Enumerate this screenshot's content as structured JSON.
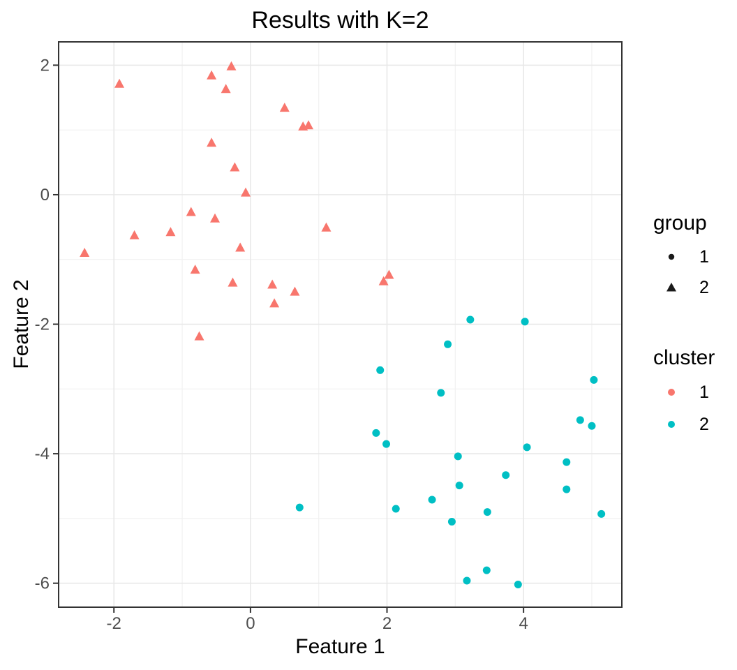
{
  "title": "Results with K=2",
  "x_axis": {
    "label": "Feature 1",
    "ticks": [
      -2,
      0,
      2,
      4
    ],
    "minor_ticks": [
      -1,
      1,
      3,
      5
    ],
    "range": [
      -2.81,
      5.44
    ]
  },
  "y_axis": {
    "label": "Feature 2",
    "ticks": [
      2,
      0,
      -2,
      -4,
      -6
    ],
    "minor_ticks": [
      1,
      -1,
      -3,
      -5
    ],
    "range": [
      -6.37,
      2.36
    ]
  },
  "legend": {
    "group": {
      "title": "group",
      "items": [
        {
          "label": "1",
          "shape": "circle",
          "color": "#1a1a1a"
        },
        {
          "label": "2",
          "shape": "triangle",
          "color": "#1a1a1a"
        }
      ]
    },
    "cluster": {
      "title": "cluster",
      "items": [
        {
          "label": "1",
          "shape": "circle",
          "color": "#F8766D"
        },
        {
          "label": "2",
          "shape": "circle",
          "color": "#00BFC4"
        }
      ]
    }
  },
  "colors": {
    "cluster1": "#F8766D",
    "cluster2": "#00BFC4",
    "grid_major": "#E8E8E8",
    "grid_minor": "#F1F1F1",
    "panel_border": "#333333",
    "tick_mark": "#333333",
    "tick_label": "#4D4D4D",
    "background": "#FFFFFF"
  },
  "chart_data": {
    "type": "scatter",
    "title": "Results with K=2",
    "xlabel": "Feature 1",
    "ylabel": "Feature 2",
    "xlim": [
      -2.81,
      5.44
    ],
    "ylim": [
      -6.37,
      2.36
    ],
    "x_ticks": [
      -2,
      0,
      2,
      4
    ],
    "y_ticks": [
      2,
      0,
      -2,
      -4,
      -6
    ],
    "x_minor": [
      -1,
      1,
      3,
      5
    ],
    "y_minor": [
      1,
      -1,
      -3,
      -5
    ],
    "grid": true,
    "legend_position": "right",
    "series": [
      {
        "name": "cluster 1 (group 2)",
        "cluster": "1",
        "group": "2",
        "marker": "triangle",
        "color": "#F8766D",
        "points": [
          [
            -2.43,
            -0.9
          ],
          [
            -1.92,
            1.71
          ],
          [
            -1.7,
            -0.63
          ],
          [
            -1.17,
            -0.58
          ],
          [
            -0.87,
            -0.27
          ],
          [
            -0.81,
            -1.16
          ],
          [
            -0.75,
            -2.19
          ],
          [
            -0.57,
            1.84
          ],
          [
            -0.57,
            0.8
          ],
          [
            -0.52,
            -0.37
          ],
          [
            -0.36,
            1.63
          ],
          [
            -0.28,
            1.98
          ],
          [
            -0.26,
            -1.36
          ],
          [
            -0.23,
            0.42
          ],
          [
            -0.15,
            -0.82
          ],
          [
            -0.07,
            0.03
          ],
          [
            0.32,
            -1.39
          ],
          [
            0.35,
            -1.68
          ],
          [
            0.5,
            1.34
          ],
          [
            0.65,
            -1.5
          ],
          [
            0.77,
            1.05
          ],
          [
            0.85,
            1.07
          ],
          [
            1.11,
            -0.51
          ],
          [
            1.95,
            -1.34
          ],
          [
            2.03,
            -1.24
          ]
        ]
      },
      {
        "name": "cluster 2 (group 1)",
        "cluster": "2",
        "group": "1",
        "marker": "circle",
        "color": "#00BFC4",
        "points": [
          [
            0.72,
            -4.83
          ],
          [
            1.84,
            -3.68
          ],
          [
            1.9,
            -2.71
          ],
          [
            1.99,
            -3.85
          ],
          [
            2.13,
            -4.85
          ],
          [
            2.66,
            -4.71
          ],
          [
            2.79,
            -3.06
          ],
          [
            2.89,
            -2.31
          ],
          [
            2.95,
            -5.05
          ],
          [
            3.04,
            -4.04
          ],
          [
            3.06,
            -4.49
          ],
          [
            3.17,
            -5.96
          ],
          [
            3.22,
            -1.93
          ],
          [
            3.46,
            -5.8
          ],
          [
            3.47,
            -4.9
          ],
          [
            3.74,
            -4.33
          ],
          [
            3.92,
            -6.02
          ],
          [
            4.02,
            -1.96
          ],
          [
            4.05,
            -3.9
          ],
          [
            4.63,
            -4.13
          ],
          [
            4.63,
            -4.55
          ],
          [
            4.83,
            -3.48
          ],
          [
            5.0,
            -3.57
          ],
          [
            5.03,
            -2.86
          ],
          [
            5.14,
            -4.93
          ]
        ]
      }
    ]
  }
}
